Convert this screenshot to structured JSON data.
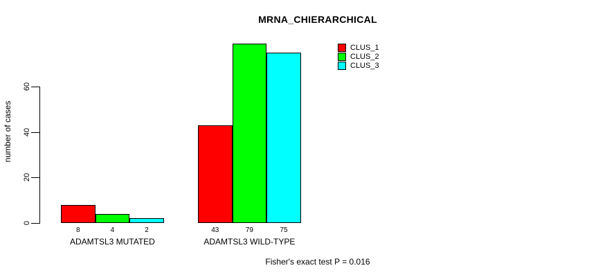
{
  "chart_data": {
    "type": "bar",
    "title": "MRNA_CHIERARCHICAL",
    "ylabel": "number of cases",
    "xlabel": "",
    "categories": [
      "ADAMTSL3 MUTATED",
      "ADAMTSL3 WILD-TYPE"
    ],
    "series": [
      {
        "name": "CLUS_1",
        "color": "#ff0000",
        "values": [
          8,
          43
        ]
      },
      {
        "name": "CLUS_2",
        "color": "#00ff00",
        "values": [
          4,
          79
        ]
      },
      {
        "name": "CLUS_3",
        "color": "#00ffff",
        "values": [
          2,
          75
        ]
      }
    ],
    "yticks": [
      0,
      20,
      40,
      60
    ],
    "ylim": [
      0,
      82
    ],
    "grid": false,
    "legend_position": "top-right",
    "bar_border_color": "#000000",
    "background": "#ffffff",
    "footnote": "Fisher's exact test P = 0.016"
  }
}
